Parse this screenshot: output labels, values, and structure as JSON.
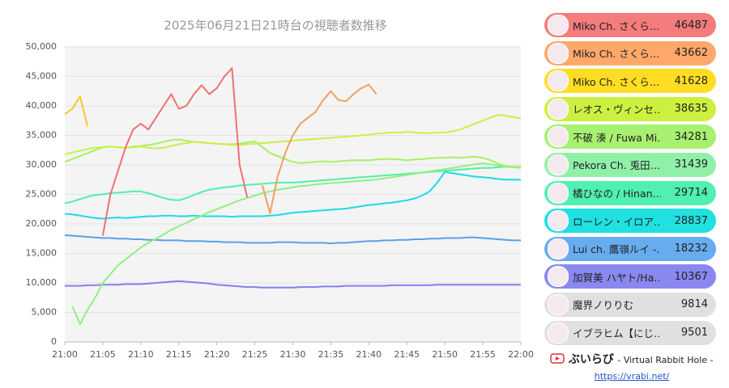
{
  "chart_data": {
    "type": "line",
    "title": "2025年06月21日21時台の視聴者数推移",
    "categories": [
      "21:00",
      null,
      null,
      null,
      null,
      "21:05",
      null,
      null,
      null,
      null,
      "21:10",
      null,
      null,
      null,
      null,
      "21:15",
      null,
      null,
      null,
      null,
      "21:20",
      null,
      null,
      null,
      null,
      "21:25",
      null,
      null,
      null,
      null,
      "21:30",
      null,
      null,
      null,
      null,
      "21:35",
      null,
      null,
      null,
      null,
      "21:40",
      null,
      null,
      null,
      null,
      "21:45",
      null,
      null,
      null,
      null,
      "21:50",
      null,
      null,
      null,
      null,
      "21:55",
      null,
      null,
      null,
      null,
      "22:00"
    ],
    "ylim": [
      0,
      50000
    ],
    "yticks": [
      0,
      {
        "value": 5000,
        "label": "5,000"
      },
      {
        "value": 10000,
        "label": "10,000"
      },
      {
        "value": 15000,
        "label": "15,000"
      },
      {
        "value": 20000,
        "label": "20,000"
      },
      {
        "value": 25000,
        "label": "25,000"
      },
      {
        "value": 30000,
        "label": "30,000"
      },
      {
        "value": 35000,
        "label": "35,000"
      },
      {
        "value": 40000,
        "label": "40,000"
      },
      {
        "value": 45000,
        "label": "45,000"
      },
      {
        "value": 50000,
        "label": "50,000"
      }
    ],
    "grid": true,
    "series": [
      {
        "color": "#8080f0",
        "values": [
          9500,
          9500,
          9500,
          9600,
          9600,
          9700,
          9700,
          9700,
          9800,
          9800,
          9800,
          9900,
          10000,
          10100,
          10200,
          10300,
          10200,
          10100,
          10000,
          9900,
          9700,
          9600,
          9500,
          9400,
          9300,
          9300,
          9200,
          9200,
          9200,
          9200,
          9200,
          9300,
          9300,
          9300,
          9400,
          9400,
          9400,
          9500,
          9500,
          9500,
          9500,
          9500,
          9500,
          9600,
          9600,
          9600,
          9600,
          9600,
          9600,
          9700,
          9700,
          9700,
          9700,
          9700,
          9700,
          9700,
          9700,
          9700,
          9700,
          9700,
          9700
        ]
      },
      {
        "color": "#5aa0e8",
        "values": [
          18100,
          18000,
          17900,
          17800,
          17700,
          17600,
          17600,
          17500,
          17500,
          17400,
          17400,
          17300,
          17300,
          17200,
          17200,
          17200,
          17100,
          17100,
          17100,
          17000,
          17000,
          16900,
          16900,
          16900,
          16800,
          16800,
          16800,
          16800,
          16900,
          16900,
          16900,
          16800,
          16800,
          16800,
          16800,
          16700,
          16800,
          16800,
          16900,
          17000,
          17100,
          17100,
          17200,
          17200,
          17300,
          17300,
          17400,
          17400,
          17500,
          17500,
          17600,
          17600,
          17600,
          17700,
          17700,
          17600,
          17500,
          17400,
          17300,
          17200,
          17200
        ]
      },
      {
        "color": "#20d8e8",
        "values": [
          21700,
          21600,
          21400,
          21200,
          21000,
          20900,
          21000,
          21100,
          21000,
          21100,
          21200,
          21300,
          21300,
          21400,
          21400,
          21300,
          21300,
          21400,
          21300,
          21300,
          21300,
          21300,
          21200,
          21300,
          21300,
          21300,
          21300,
          21400,
          21500,
          21700,
          21900,
          22000,
          22100,
          22200,
          22300,
          22400,
          22500,
          22600,
          22800,
          23000,
          23200,
          23300,
          23500,
          23600,
          23800,
          24000,
          24300,
          24800,
          25500,
          27000,
          28800,
          28600,
          28400,
          28200,
          28000,
          27900,
          27800,
          27600,
          27500,
          27500,
          27500
        ]
      },
      {
        "color": "#50f0a8",
        "values": [
          23500,
          23800,
          24200,
          24600,
          24900,
          25000,
          25200,
          25300,
          25400,
          25500,
          25500,
          25200,
          24800,
          24400,
          24100,
          24000,
          24400,
          24900,
          25400,
          25800,
          26000,
          26200,
          26300,
          26500,
          26600,
          26700,
          26800,
          26900,
          27000,
          27000,
          27000,
          27100,
          27200,
          27300,
          27400,
          27500,
          27600,
          27700,
          27800,
          27900,
          28000,
          28100,
          28200,
          28300,
          28400,
          28500,
          28600,
          28700,
          28800,
          28900,
          29000,
          29100,
          29200,
          29300,
          29400,
          29500,
          29500,
          29600,
          29700,
          29700,
          29700
        ]
      },
      {
        "color": "#90f080",
        "values": [
          null,
          6000,
          3000,
          5500,
          7500,
          10000,
          11500,
          13000,
          14000,
          15000,
          16000,
          16800,
          17500,
          18200,
          19000,
          19600,
          20200,
          20800,
          21400,
          22000,
          22500,
          23000,
          23500,
          24000,
          24400,
          24800,
          25200,
          25500,
          25800,
          26000,
          26200,
          26400,
          26500,
          26700,
          26800,
          26900,
          27000,
          27100,
          27200,
          27300,
          27400,
          27500,
          27700,
          27900,
          28100,
          28300,
          28500,
          28700,
          28900,
          29100,
          29300,
          29500,
          29700,
          29900,
          30100,
          30300,
          30100,
          29900,
          29700,
          29600,
          29500
        ]
      },
      {
        "color": "#a8f060",
        "values": [
          30500,
          31000,
          31500,
          32000,
          32500,
          33000,
          33100,
          33000,
          32900,
          33100,
          33200,
          33400,
          33600,
          33900,
          34200,
          34300,
          34100,
          33900,
          33800,
          33700,
          33600,
          33500,
          33500,
          33600,
          33800,
          34000,
          33000,
          32000,
          31500,
          31000,
          30500,
          30300,
          30400,
          30500,
          30600,
          30500,
          30600,
          30700,
          30800,
          30800,
          30800,
          30900,
          31000,
          31000,
          30900,
          30800,
          30900,
          31000,
          31100,
          31200,
          31200,
          31300,
          31200,
          31300,
          31400,
          31200,
          30800,
          30200,
          29800,
          29700,
          29600
        ]
      },
      {
        "color": "#c8f048",
        "values": [
          31800,
          32100,
          32400,
          32700,
          32900,
          33000,
          33100,
          33000,
          32900,
          33000,
          33100,
          32900,
          32800,
          32900,
          33200,
          33500,
          33700,
          33900,
          33800,
          33700,
          33600,
          33500,
          33400,
          33400,
          33500,
          33600,
          33700,
          33800,
          33900,
          34000,
          34100,
          34200,
          34300,
          34400,
          34500,
          34600,
          34700,
          34800,
          34900,
          35000,
          35100,
          35300,
          35400,
          35500,
          35500,
          35600,
          35500,
          35400,
          35400,
          35500,
          35500,
          35700,
          36000,
          36500,
          37000,
          37500,
          38000,
          38500,
          38300,
          38100,
          37900
        ]
      },
      {
        "color": "#f8c830",
        "values": [
          38600,
          39500,
          41600,
          36500,
          null,
          null,
          null,
          null,
          null,
          null,
          null,
          null,
          null,
          null,
          null,
          null,
          null,
          null,
          null,
          null,
          null,
          null,
          null,
          null,
          null,
          null,
          null,
          null,
          null,
          null,
          null,
          null,
          null,
          null,
          null,
          null,
          null,
          null,
          null,
          null,
          null,
          null,
          null,
          null,
          null,
          null,
          null,
          null,
          null,
          null,
          null,
          null,
          null,
          null,
          null,
          null,
          null,
          null,
          null,
          null,
          null
        ]
      },
      {
        "color": "#f0a060",
        "values": [
          null,
          null,
          null,
          null,
          null,
          null,
          null,
          null,
          null,
          null,
          null,
          null,
          null,
          null,
          null,
          null,
          null,
          null,
          null,
          null,
          null,
          null,
          null,
          null,
          null,
          null,
          26500,
          21800,
          28000,
          32000,
          35000,
          37000,
          38000,
          39000,
          41000,
          42500,
          41000,
          40800,
          42000,
          43000,
          43600,
          42000,
          null,
          null,
          null,
          null,
          null,
          null,
          null,
          null,
          null,
          null,
          null,
          null,
          null,
          null,
          null,
          null,
          null,
          null,
          null
        ]
      },
      {
        "color": "#f07070",
        "values": [
          null,
          null,
          null,
          null,
          null,
          18000,
          25000,
          29000,
          33000,
          36000,
          37000,
          36000,
          38000,
          40000,
          42000,
          39500,
          40000,
          42000,
          43500,
          42000,
          43000,
          45000,
          46400,
          30000,
          24500,
          null,
          null,
          null,
          null,
          null,
          null,
          null,
          null,
          null,
          null,
          null,
          null,
          null,
          null,
          null,
          null,
          null,
          null,
          null,
          null,
          null,
          null,
          null,
          null,
          null,
          null,
          null,
          null,
          null,
          null,
          null,
          null,
          null,
          null,
          null,
          null
        ]
      }
    ]
  },
  "ranking": [
    {
      "name": "Miko Ch. さくら…",
      "value": 46487,
      "color": "#f47c7c"
    },
    {
      "name": "Miko Ch. さくら…",
      "value": 43662,
      "color": "#ffa86a"
    },
    {
      "name": "Miko Ch. さくら…",
      "value": 41628,
      "color": "#ffdd22"
    },
    {
      "name": "レオス・ヴィンセ…",
      "value": 38635,
      "color": "#ccf040"
    },
    {
      "name": "不破 湊 / Fuwa Mi…",
      "value": 34281,
      "color": "#a8f070"
    },
    {
      "name": "Pekora Ch. 兎田…",
      "value": 31439,
      "color": "#90f0a8"
    },
    {
      "name": "橘ひなの / Hinan…",
      "value": 29714,
      "color": "#50f0b0"
    },
    {
      "name": "ローレン・イロア…",
      "value": 28837,
      "color": "#20e0e0"
    },
    {
      "name": "Lui ch. 鷹嶺ルイ -…",
      "value": 18232,
      "color": "#68acf0"
    },
    {
      "name": "加賀美 ハヤト/Ha…",
      "value": 10367,
      "color": "#8888f0"
    },
    {
      "name": "魔界ノりりむ",
      "value": 9814,
      "color": "#e0e0e0"
    },
    {
      "name": "イブラヒム【にじ…",
      "value": 9501,
      "color": "#e0e0e0"
    }
  ],
  "footer": {
    "brand": "ぶいらび",
    "tagline": "- Virtual Rabbit Hole -",
    "url": "https://vrabi.net/"
  }
}
